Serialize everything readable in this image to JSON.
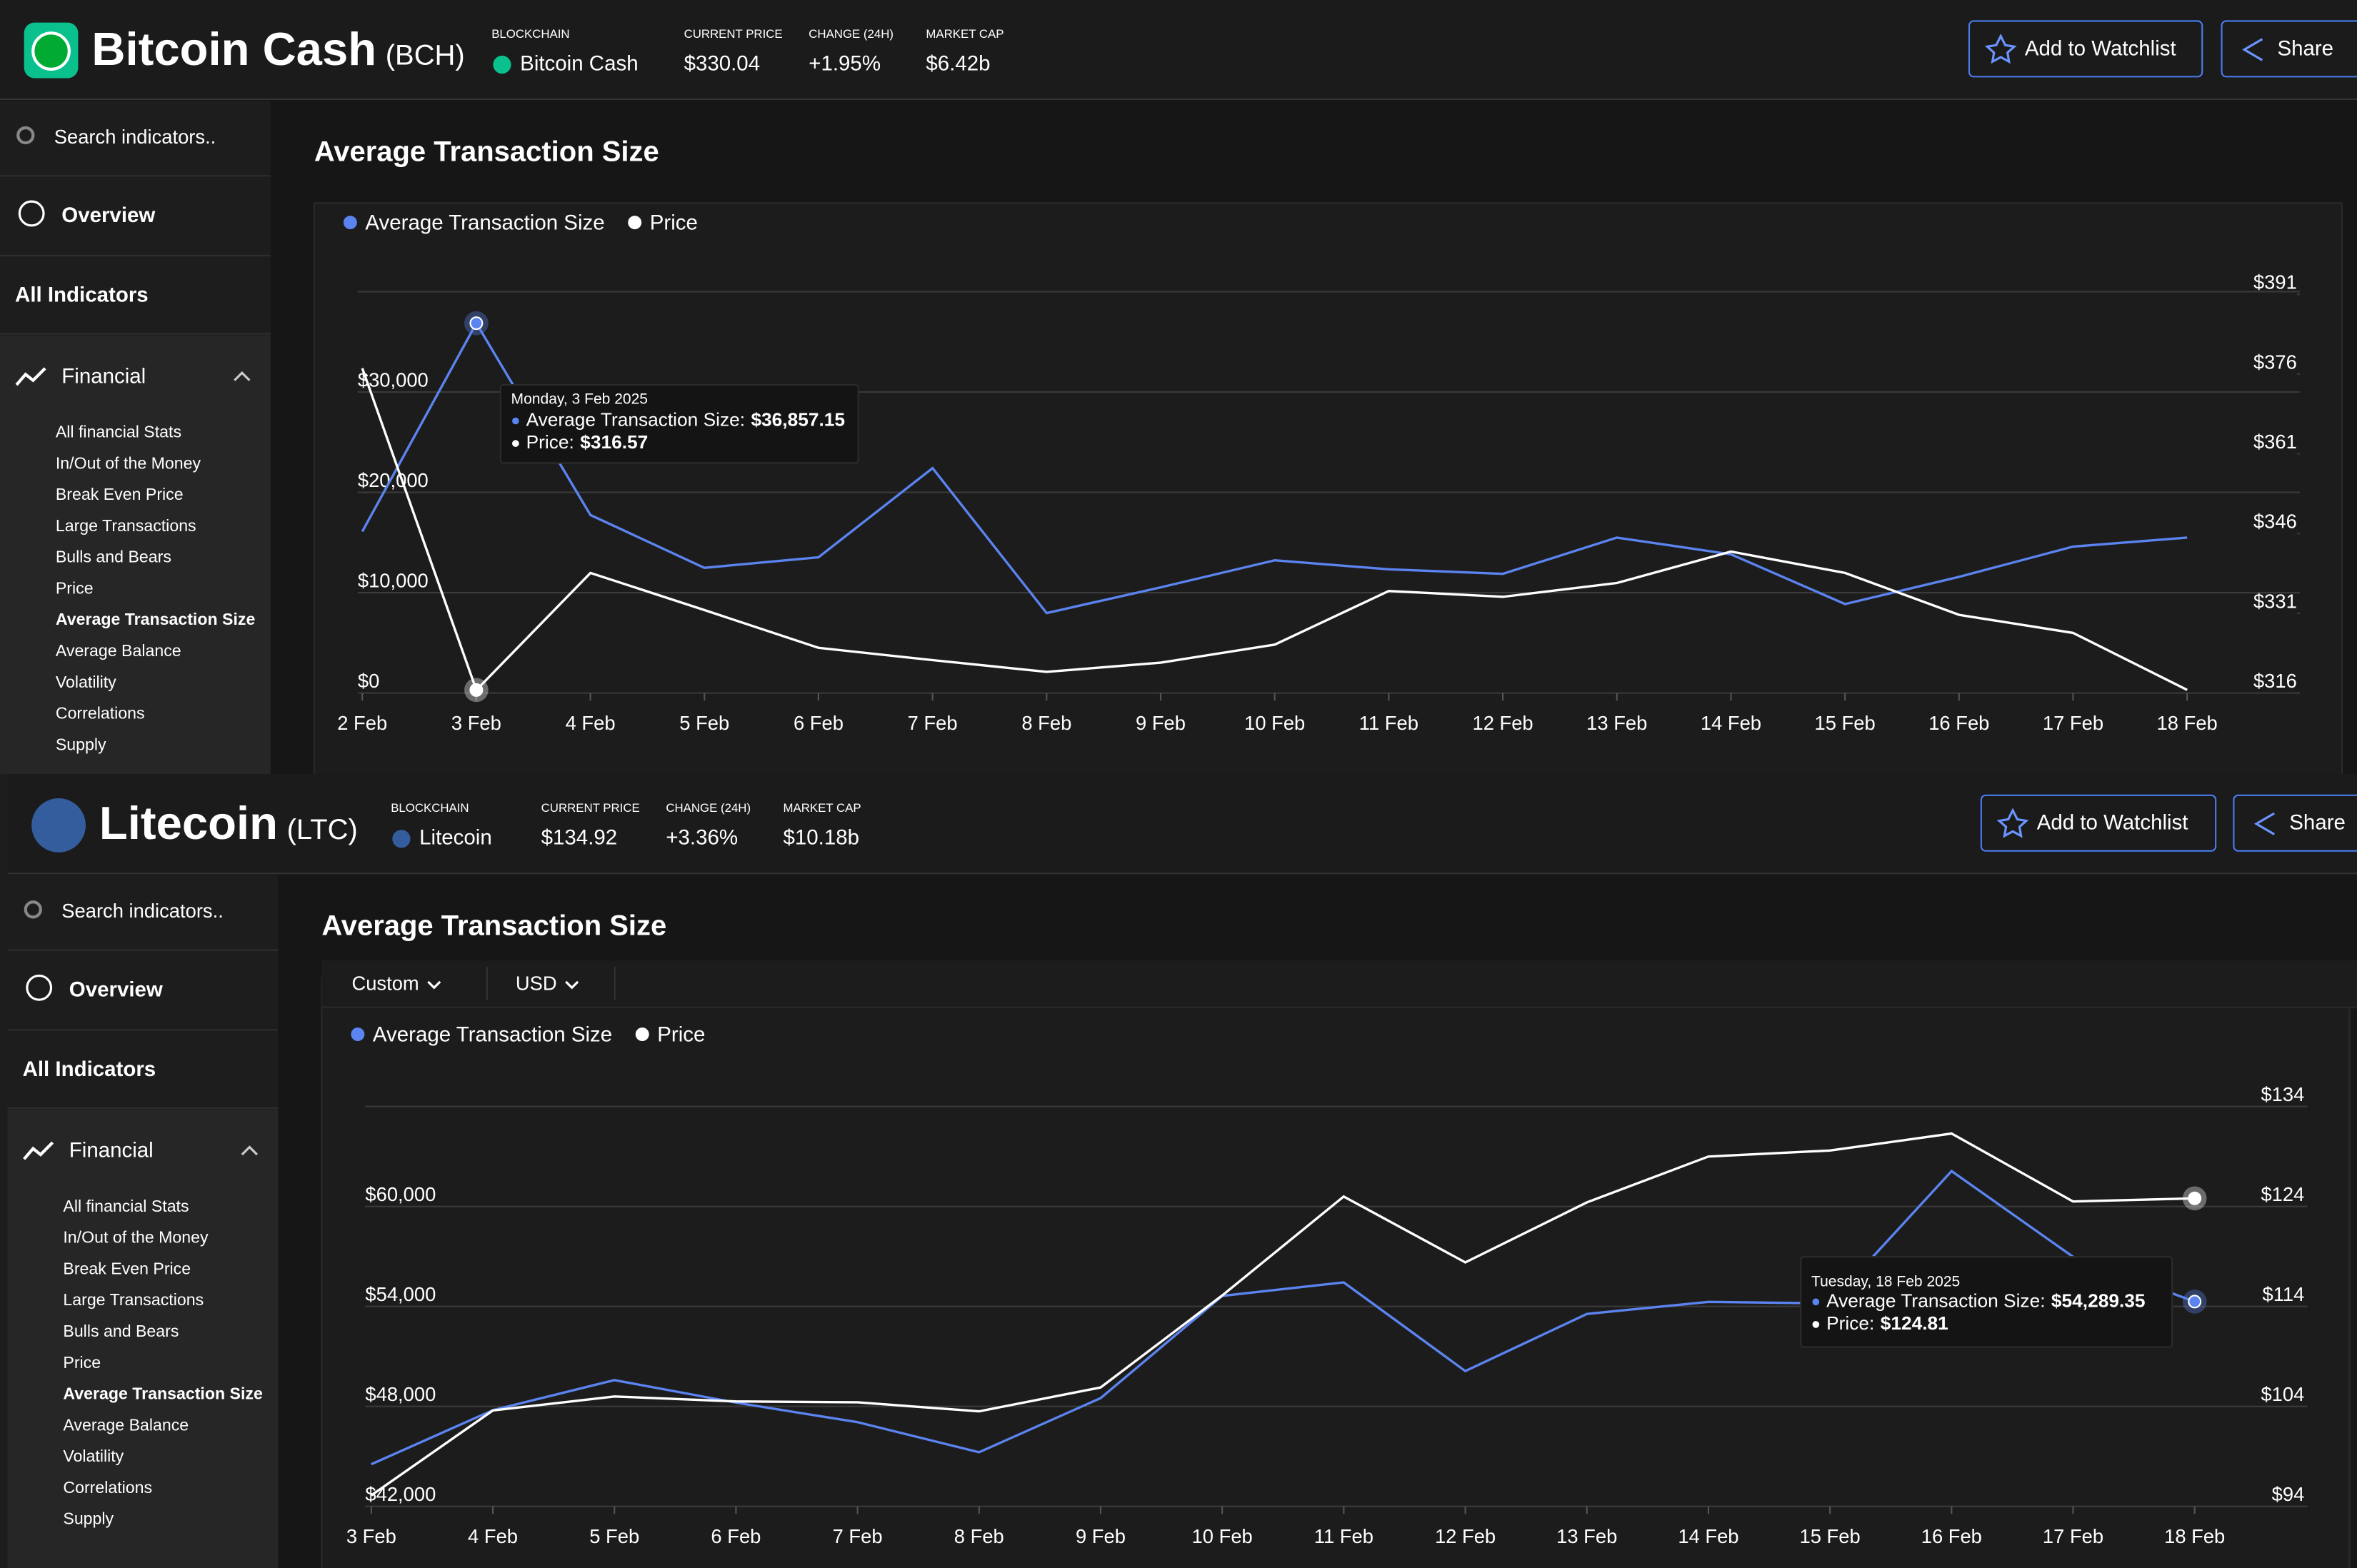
{
  "panels": [
    {
      "header": {
        "name": "Bitcoin Cash",
        "ticker": "(BCH)",
        "stats": [
          {
            "label": "BLOCKCHAIN",
            "value": "Bitcoin Cash"
          },
          {
            "label": "CURRENT PRICE",
            "value": "$330.04"
          },
          {
            "label": "CHANGE (24H)",
            "value": "+1.95%"
          },
          {
            "label": "MARKET CAP",
            "value": "$6.42b"
          }
        ],
        "buttons": [
          "Add to Watchlist",
          "Share"
        ]
      },
      "sidebar": {
        "search": "Search indicators..",
        "nav": [
          "Overview",
          "All Indicators"
        ],
        "section": "Financial",
        "items": [
          "All financial Stats",
          "In/Out of the Money",
          "Break Even Price",
          "Large Transactions",
          "Bulls and Bears",
          "Price",
          "Average Transaction Size",
          "Average Balance",
          "Volatility",
          "Correlations",
          "Supply"
        ]
      },
      "page_title": "Average Transaction Size",
      "tooltip": {
        "date": "Monday, 3 Feb 2025",
        "lines": [
          {
            "label": "Average Transaction Size:",
            "value": "$36,857.15"
          },
          {
            "label": "Price:",
            "value": "$316.57"
          }
        ]
      }
    },
    {
      "header": {
        "name": "Litecoin",
        "ticker": "(LTC)",
        "stats": [
          {
            "label": "BLOCKCHAIN",
            "value": "Litecoin"
          },
          {
            "label": "CURRENT PRICE",
            "value": "$134.92"
          },
          {
            "label": "CHANGE (24H)",
            "value": "+3.36%"
          },
          {
            "label": "MARKET CAP",
            "value": "$10.18b"
          }
        ],
        "buttons": [
          "Add to Watchlist",
          "Share"
        ]
      },
      "sidebar": {
        "search": "Search indicators..",
        "nav": [
          "Overview",
          "All Indicators"
        ],
        "section": "Financial",
        "items": [
          "All financial Stats",
          "In/Out of the Money",
          "Break Even Price",
          "Large Transactions",
          "Bulls and Bears",
          "Price",
          "Average Transaction Size",
          "Average Balance",
          "Volatility",
          "Correlations",
          "Supply"
        ]
      },
      "page_title": "Average Transaction Size",
      "controls": [
        "Custom",
        "USD"
      ],
      "tooltip": {
        "date": "Tuesday, 18 Feb 2025",
        "lines": [
          {
            "label": "Average Transaction Size:",
            "value": "$54,289.35"
          },
          {
            "label": "Price:",
            "value": "$124.81"
          }
        ]
      }
    }
  ],
  "chart_data": [
    {
      "type": "line",
      "categories": [
        "2 Feb",
        "3 Feb",
        "4 Feb",
        "5 Feb",
        "6 Feb",
        "7 Feb",
        "8 Feb",
        "9 Feb",
        "10 Feb",
        "11 Feb",
        "12 Feb",
        "13 Feb",
        "14 Feb",
        "15 Feb",
        "16 Feb",
        "17 Feb",
        "18 Feb"
      ],
      "series": [
        {
          "name": "Average Transaction Size",
          "color": "#5b84f0",
          "values": [
            16090,
            36857.15,
            17740,
            12480,
            13530,
            22410,
            7970,
            10530,
            13230,
            12330,
            11880,
            15490,
            13830,
            8870,
            11580,
            14590,
            15490
          ]
        },
        {
          "name": "Price",
          "color": "#ffffff",
          "axis": "y2",
          "values": [
            377.1,
            316.57,
            338.6,
            331.6,
            324.5,
            322.2,
            320.0,
            321.7,
            325.1,
            335.2,
            334.1,
            336.7,
            342.6,
            338.6,
            330.7,
            327.3,
            316.6
          ]
        }
      ],
      "ylim": [
        0,
        40000
      ],
      "yticks": [
        {
          "value": 0,
          "label": "$0"
        },
        {
          "value": 10000,
          "label": "$10,000"
        },
        {
          "value": 20000,
          "label": "$20,000"
        },
        {
          "value": 30000,
          "label": "$30,000"
        }
      ],
      "y2lim": [
        316,
        391.5
      ],
      "y2ticks": [
        {
          "value": 316,
          "label": "$316"
        },
        {
          "value": 331,
          "label": "$331"
        },
        {
          "value": 346,
          "label": "$346"
        },
        {
          "value": 361,
          "label": "$361"
        },
        {
          "value": 376,
          "label": "$376"
        },
        {
          "value": 391,
          "label": "$391"
        }
      ],
      "grid": true
    },
    {
      "type": "line",
      "categories": [
        "3 Feb",
        "4 Feb",
        "5 Feb",
        "6 Feb",
        "7 Feb",
        "8 Feb",
        "9 Feb",
        "10 Feb",
        "11 Feb",
        "12 Feb",
        "13 Feb",
        "14 Feb",
        "15 Feb",
        "16 Feb",
        "17 Feb",
        "18 Feb"
      ],
      "series": [
        {
          "name": "Average Transaction Size",
          "color": "#5b84f0",
          "values": [
            44530,
            47770,
            49580,
            48230,
            47050,
            45250,
            48500,
            54630,
            55440,
            50120,
            53550,
            54270,
            54180,
            62120,
            56980,
            54289.35
          ]
        },
        {
          "name": "Price",
          "color": "#ffffff",
          "axis": "y2",
          "values": [
            95.1,
            103.6,
            105.0,
            104.5,
            104.4,
            103.5,
            105.9,
            115.1,
            125.0,
            118.4,
            124.4,
            129.0,
            129.6,
            131.3,
            124.5,
            124.81
          ]
        }
      ],
      "ylim": [
        42000,
        66000
      ],
      "yticks": [
        {
          "value": 42000,
          "label": "$42,000"
        },
        {
          "value": 48000,
          "label": "$48,000"
        },
        {
          "value": 54000,
          "label": "$54,000"
        },
        {
          "value": 60000,
          "label": "$60,000"
        }
      ],
      "y2lim": [
        94,
        134
      ],
      "y2ticks": [
        {
          "value": 94,
          "label": "$94"
        },
        {
          "value": 104,
          "label": "$104"
        },
        {
          "value": 114,
          "label": "$114"
        },
        {
          "value": 124,
          "label": "$124"
        },
        {
          "value": 134,
          "label": "$134"
        }
      ],
      "grid": true
    }
  ]
}
